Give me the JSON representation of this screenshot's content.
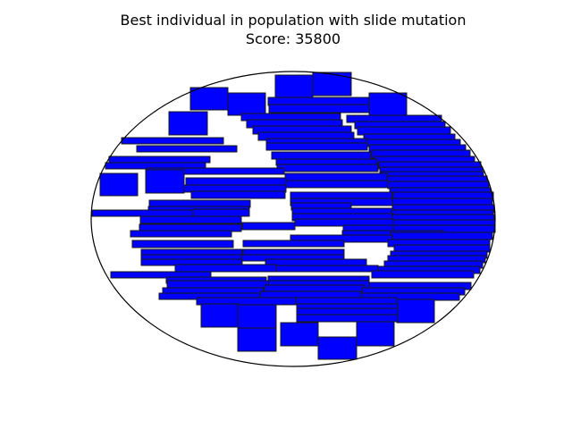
{
  "figure": {
    "title_line1": "Best individual in population with slide mutation",
    "title_line2": "Score: 35800"
  },
  "colors": {
    "rect_fill": "#0000ff",
    "rect_stroke": "#1a1a1a",
    "boundary": "#000000",
    "background": "#ffffff"
  }
}
